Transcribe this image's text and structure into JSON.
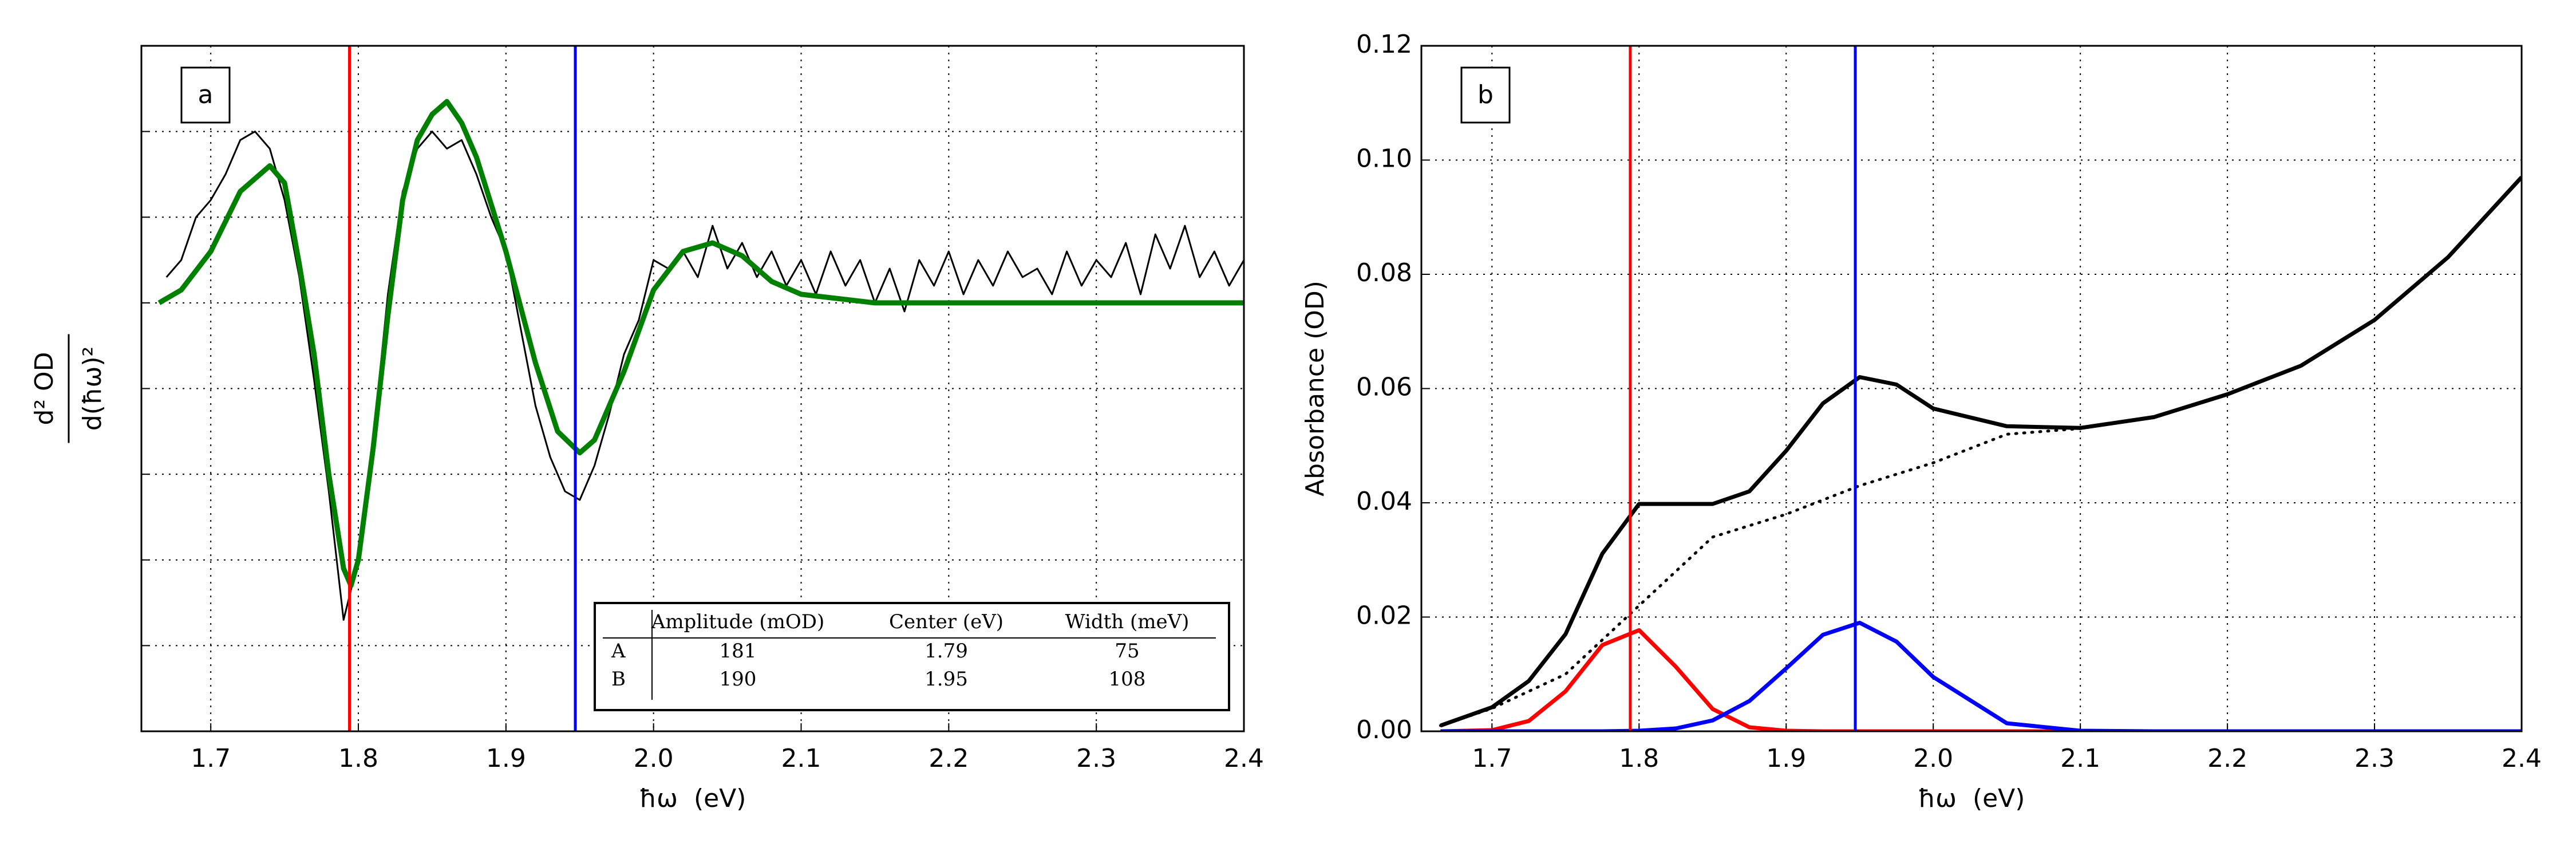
{
  "chart_data": [
    {
      "type": "line",
      "panel_label": "a",
      "xlabel": "ħω  (eV)",
      "ylabel_numerator": "d² OD",
      "ylabel_denominator": "d(ħω)²",
      "xlim": [
        1.653,
        2.4
      ],
      "ylim": [
        -5,
        3
      ],
      "xticks": [
        1.7,
        1.8,
        1.9,
        {
          "value": 2,
          "label": "2.0"
        },
        2.1,
        2.2,
        2.3,
        2.4
      ],
      "yticks": [
        -4,
        -3,
        -2,
        -1,
        0,
        1,
        2
      ],
      "ytick_labels": false,
      "grid": true,
      "vlines": [
        {
          "x": 1.794,
          "color": "#ff0000"
        },
        {
          "x": 1.947,
          "color": "#0000ff"
        }
      ],
      "series": [
        {
          "color": "#000000",
          "width": 3,
          "x": [
            1.67,
            1.68,
            1.69,
            1.7,
            1.71,
            1.72,
            1.73,
            1.74,
            1.75,
            1.76,
            1.77,
            1.78,
            1.79,
            1.8,
            1.81,
            1.82,
            1.83,
            1.84,
            1.85,
            1.86,
            1.87,
            1.88,
            1.89,
            1.9,
            1.91,
            1.92,
            1.93,
            1.94,
            1.95,
            1.96,
            1.97,
            1.98,
            1.99,
            2.0,
            2.01,
            2.02,
            2.03,
            2.04,
            2.05,
            2.06,
            2.07,
            2.08,
            2.09,
            2.1,
            2.11,
            2.12,
            2.13,
            2.14,
            2.15,
            2.16,
            2.17,
            2.18,
            2.19,
            2.2,
            2.21,
            2.22,
            2.23,
            2.24,
            2.25,
            2.26,
            2.27,
            2.28,
            2.29,
            2.3,
            2.31,
            2.32,
            2.33,
            2.34,
            2.35,
            2.36,
            2.37,
            2.38,
            2.39,
            2.4
          ],
          "values": [
            0.3,
            0.5,
            1.0,
            1.2,
            1.5,
            1.9,
            2.0,
            1.8,
            1.2,
            0.3,
            -0.9,
            -2.2,
            -3.7,
            -3.0,
            -1.6,
            0.1,
            1.3,
            1.8,
            2.0,
            1.8,
            1.9,
            1.5,
            1.0,
            0.6,
            -0.3,
            -1.2,
            -1.8,
            -2.2,
            -2.3,
            -1.9,
            -1.3,
            -0.6,
            -0.2,
            0.5,
            0.4,
            0.6,
            0.3,
            0.9,
            0.4,
            0.7,
            0.3,
            0.6,
            0.2,
            0.5,
            0.1,
            0.6,
            0.2,
            0.5,
            0.0,
            0.4,
            -0.1,
            0.5,
            0.2,
            0.6,
            0.1,
            0.5,
            0.2,
            0.6,
            0.3,
            0.4,
            0.1,
            0.6,
            0.2,
            0.5,
            0.3,
            0.7,
            0.1,
            0.8,
            0.4,
            0.9,
            0.3,
            0.6,
            0.2,
            0.5
          ]
        },
        {
          "color": "#008000",
          "width": 9,
          "x": [
            1.665,
            1.68,
            1.7,
            1.72,
            1.74,
            1.75,
            1.76,
            1.77,
            1.78,
            1.79,
            1.795,
            1.8,
            1.81,
            1.82,
            1.83,
            1.84,
            1.85,
            1.86,
            1.87,
            1.88,
            1.9,
            1.92,
            1.935,
            1.95,
            1.96,
            1.98,
            2.0,
            2.02,
            2.04,
            2.06,
            2.08,
            2.1,
            2.15,
            2.2,
            2.3,
            2.4
          ],
          "values": [
            0,
            0.15,
            0.6,
            1.3,
            1.6,
            1.4,
            0.45,
            -0.6,
            -2.0,
            -3.1,
            -3.3,
            -3.0,
            -1.7,
            -0.15,
            1.2,
            1.9,
            2.2,
            2.35,
            2.1,
            1.7,
            0.6,
            -0.7,
            -1.5,
            -1.75,
            -1.6,
            -0.8,
            0.15,
            0.6,
            0.7,
            0.55,
            0.25,
            0.1,
            0,
            0,
            0,
            0
          ]
        }
      ],
      "table": {
        "columns": [
          "Amplitude (mOD)",
          "Center (eV)",
          "Width (meV)"
        ],
        "rows": [
          {
            "label": "A",
            "color": "#ff0000",
            "values": [
              181,
              1.79,
              75
            ]
          },
          {
            "label": "B",
            "color": "#0000ff",
            "values": [
              190,
              1.95,
              108
            ]
          }
        ]
      }
    },
    {
      "type": "line",
      "panel_label": "b",
      "xlabel": "ħω  (eV)",
      "ylabel": "Absorbance (OD)",
      "xlim": [
        1.652,
        2.4
      ],
      "ylim": [
        0,
        0.12
      ],
      "xticks": [
        1.7,
        1.8,
        1.9,
        {
          "value": 2,
          "label": "2.0"
        },
        2.1,
        2.2,
        2.3,
        2.4
      ],
      "yticks": [
        {
          "value": 0,
          "label": "0.00"
        },
        {
          "value": 0.02,
          "label": "0.02"
        },
        {
          "value": 0.04,
          "label": "0.04"
        },
        {
          "value": 0.06,
          "label": "0.06"
        },
        {
          "value": 0.08,
          "label": "0.08"
        },
        {
          "value": 0.1,
          "label": "0.10"
        },
        {
          "value": 0.12,
          "label": "0.12"
        }
      ],
      "grid": true,
      "vlines": [
        {
          "x": 1.794,
          "color": "#ff0000"
        },
        {
          "x": 1.947,
          "color": "#0000ff"
        }
      ],
      "x": [
        1.665,
        1.7,
        1.725,
        1.75,
        1.775,
        1.8,
        1.825,
        1.85,
        1.875,
        1.9,
        1.925,
        1.95,
        1.975,
        2.0,
        2.05,
        2.1,
        2.15,
        2.2,
        2.25,
        2.3,
        2.35,
        2.4
      ],
      "series": [
        {
          "color": "#000000",
          "width": 5,
          "style": "dotted",
          "values": [
            0.001,
            0.004,
            0.007,
            0.01,
            0.016,
            0.022,
            0.028,
            0.034,
            0.036,
            0.038,
            0.0405,
            0.043,
            0.045,
            0.047,
            0.052,
            0.053,
            0.055,
            0.059,
            0.064,
            0.072,
            0.083,
            0.097
          ]
        },
        {
          "color": "#ff0000",
          "width": 7,
          "values": [
            0,
            0.0002,
            0.0018,
            0.007,
            0.0151,
            0.0177,
            0.0113,
            0.0039,
            0.0007,
            0.0001,
            0,
            0,
            0,
            0,
            0,
            0,
            0,
            0,
            0,
            0,
            0,
            0
          ]
        },
        {
          "color": "#0000ff",
          "width": 7,
          "values": [
            0,
            0,
            0,
            0,
            0,
            0.0001,
            0.0005,
            0.0019,
            0.0053,
            0.011,
            0.0169,
            0.019,
            0.0157,
            0.0095,
            0.0014,
            0.0001,
            0,
            0,
            0,
            0,
            0,
            0
          ]
        },
        {
          "color": "#000000",
          "width": 7,
          "values": [
            0.001,
            0.0042,
            0.0088,
            0.017,
            0.0311,
            0.0398,
            0.0398,
            0.0398,
            0.042,
            0.0491,
            0.0574,
            0.062,
            0.0607,
            0.0565,
            0.0534,
            0.0531,
            0.055,
            0.059,
            0.064,
            0.072,
            0.083,
            0.097
          ]
        }
      ]
    }
  ]
}
